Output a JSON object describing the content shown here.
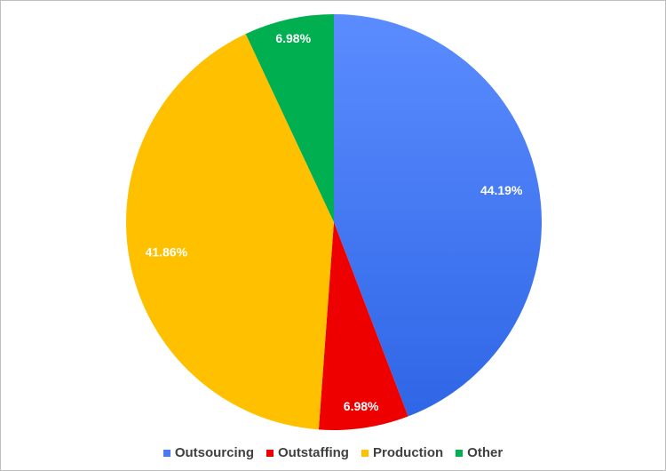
{
  "chart_data": {
    "type": "pie",
    "categories": [
      "Outsourcing",
      "Outstaffing",
      "Production",
      "Other"
    ],
    "values": [
      44.19,
      6.98,
      41.86,
      6.98
    ],
    "value_labels": [
      "44.19%",
      "6.98%",
      "41.86%",
      "6.98%"
    ],
    "colors": [
      "#4a7bef",
      "#ee0000",
      "#ffc000",
      "#00b050"
    ],
    "legend": "bottom"
  }
}
